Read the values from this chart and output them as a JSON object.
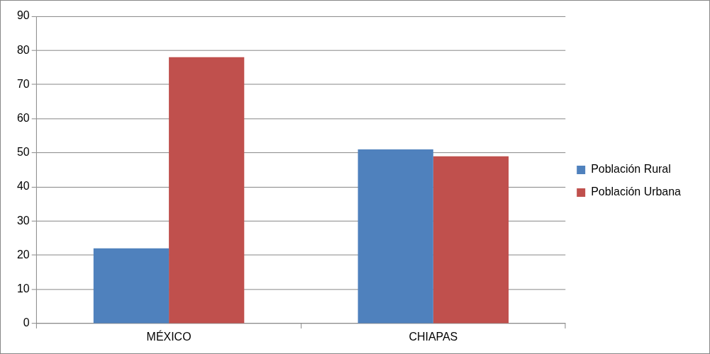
{
  "chart_data": {
    "type": "bar",
    "categories": [
      "MÉXICO",
      "CHIAPAS"
    ],
    "series": [
      {
        "name": "Población Rural",
        "color": "#4f81bd",
        "values": [
          22,
          51
        ]
      },
      {
        "name": "Población Urbana",
        "color": "#c0504d",
        "values": [
          78,
          49
        ]
      }
    ],
    "ylim": [
      0,
      90
    ],
    "yticks": [
      0,
      10,
      20,
      30,
      40,
      50,
      60,
      70,
      80,
      90
    ],
    "grid": "y",
    "legend": "right"
  }
}
